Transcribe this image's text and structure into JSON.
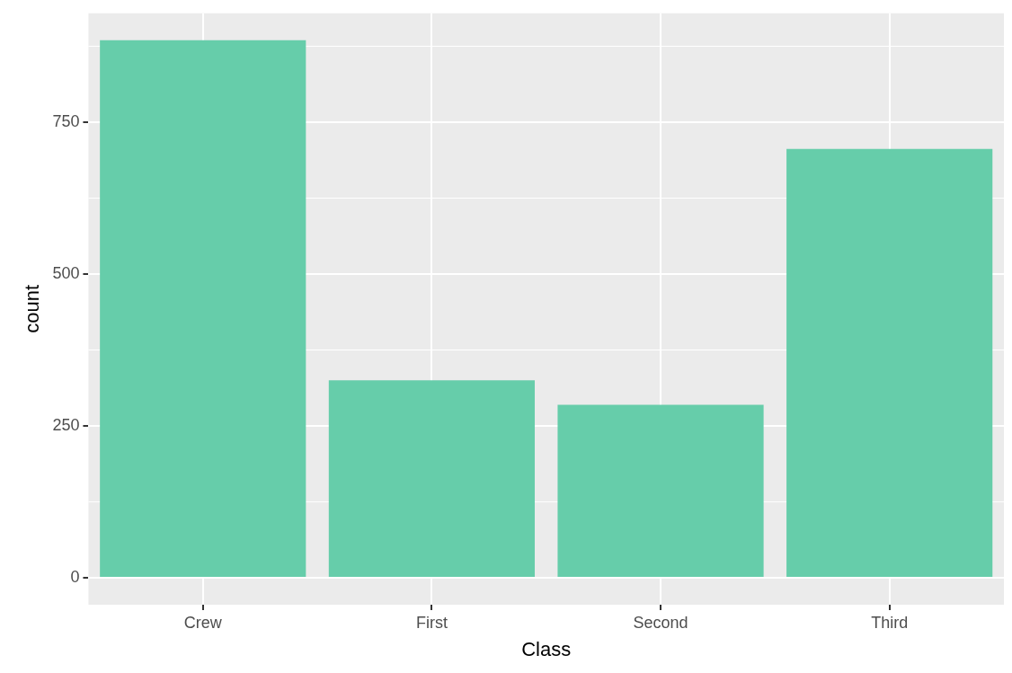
{
  "chart_data": {
    "type": "bar",
    "xlabel": "Class",
    "ylabel": "count",
    "categories": [
      "Crew",
      "First",
      "Second",
      "Third"
    ],
    "values": [
      885,
      325,
      285,
      706
    ],
    "color": "#66cdaa",
    "ylim": [
      -44.25,
      929.25
    ],
    "yticks": [
      0,
      250,
      500,
      750
    ],
    "grid": true,
    "legend": false
  }
}
